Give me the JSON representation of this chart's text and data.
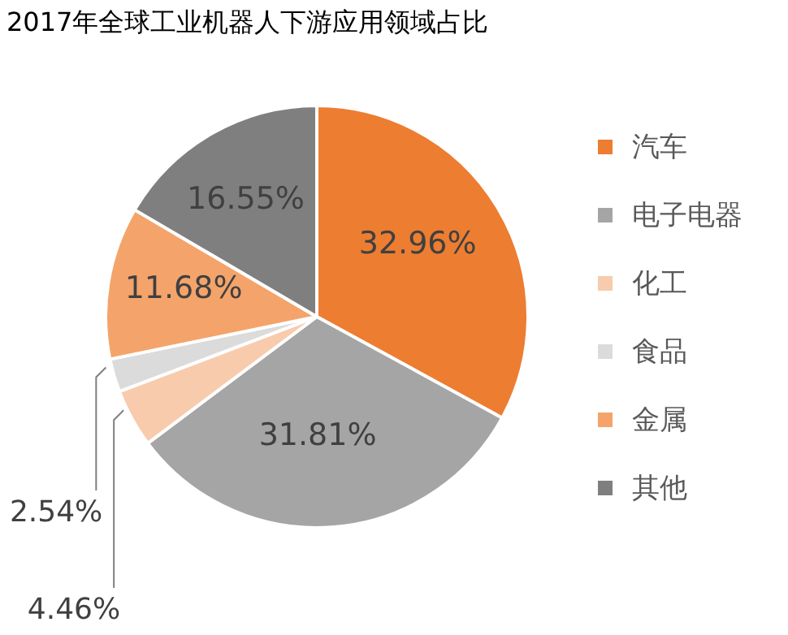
{
  "chart_data": {
    "type": "pie",
    "title": "2017年全球工业机器人下游应用领域占比",
    "categories": [
      "汽车",
      "电子电器",
      "化工",
      "食品",
      "金属",
      "其他"
    ],
    "values": [
      32.96,
      31.81,
      4.46,
      2.54,
      11.68,
      16.55
    ],
    "value_labels": [
      "32.96%",
      "31.81%",
      "4.46%",
      "2.54%",
      "11.68%",
      "16.55%"
    ],
    "colors": [
      "#ed7d31",
      "#a5a5a5",
      "#f8cbad",
      "#dbdbdb",
      "#f4a46a",
      "#7f7f7f"
    ],
    "legend": "right"
  }
}
